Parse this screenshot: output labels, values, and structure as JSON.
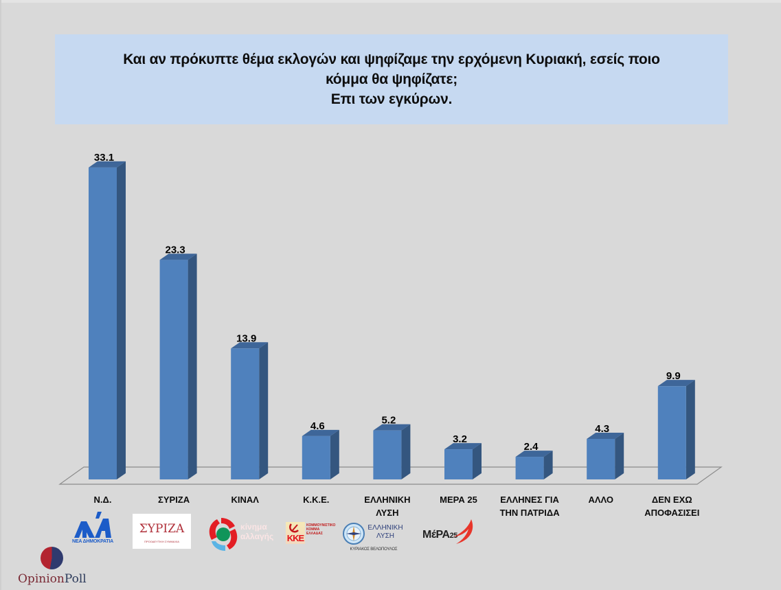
{
  "title": {
    "line1": "Και αν πρόκυπτε θέμα εκλογών και ψηφίζαμε την ερχόμενη Κυριακή, εσείς ποιο",
    "line2": "κόμμα θα ψηφίζατε;",
    "line3": "Επι των εγκύρων."
  },
  "colors": {
    "background": "#d9d9d9",
    "title_box": "#c6d9f1",
    "bar_front": "#4f81bd",
    "bar_side": "#34567f",
    "bar_top": "#3e6699",
    "floor_line": "#8c8c8c"
  },
  "chart_data": {
    "type": "bar",
    "title": "Και αν πρόκυπτε θέμα εκλογών και ψηφίζαμε την ερχόμενη Κυριακή, εσείς ποιο κόμμα θα ψηφίζατε; Επι των εγκύρων.",
    "categories": [
      "Ν.Δ.",
      "ΣΥΡΙΖΑ",
      "ΚΙΝΑΛ",
      "Κ.Κ.Ε.",
      "ΕΛΛΗΝΙΚΗ ΛΥΣΗ",
      "ΜΕΡΑ 25",
      "ΕΛΛΗΝΕΣ ΓΙΑ ΤΗΝ ΠΑΤΡΙΔΑ",
      "ΑΛΛΟ",
      "ΔΕΝ ΕΧΩ ΑΠΟΦΑΣΙΣΕΙ"
    ],
    "values": [
      33.1,
      23.3,
      13.9,
      4.6,
      5.2,
      3.2,
      2.4,
      4.3,
      9.9
    ],
    "value_labels": [
      "33.1",
      "23.3",
      "13.9",
      "4.6",
      "5.2",
      "3.2",
      "2.4",
      "4.3",
      "9.9"
    ],
    "xlabel": "",
    "ylabel": "",
    "ylim": [
      0,
      35
    ],
    "grid": false,
    "legend": "none",
    "style": "3d-column"
  },
  "categories": [
    {
      "line1": "Ν.Δ.",
      "line2": ""
    },
    {
      "line1": "ΣΥΡΙΖΑ",
      "line2": ""
    },
    {
      "line1": "ΚΙΝΑΛ",
      "line2": ""
    },
    {
      "line1": "Κ.Κ.Ε.",
      "line2": ""
    },
    {
      "line1": "ΕΛΛΗΝΙΚΗ",
      "line2": "ΛΥΣΗ"
    },
    {
      "line1": "ΜΕΡΑ 25",
      "line2": ""
    },
    {
      "line1": "ΕΛΛΗΝΕΣ ΓΙΑ",
      "line2": "ΤΗΝ ΠΑΤΡΙΔΑ"
    },
    {
      "line1": "ΑΛΛΟ",
      "line2": ""
    },
    {
      "line1": "ΔΕΝ ΕΧΩ",
      "line2": "ΑΠΟΦΑΣΙΣΕΙ"
    }
  ],
  "logos": {
    "nd": {
      "text": "ΝΕΑ ΔΗΜΟΚΡΑΤΙΑ"
    },
    "syriza": {
      "text": "ΣΥΡΙΖΑ",
      "sub": "ΠΡΟΟΔΕΥΤΙΚΗ ΣΥΜΜΑΧΙΑ"
    },
    "kinal": {
      "line1": "κίνημα",
      "line2": "αλλαγής"
    },
    "kke": {
      "text": "ΚΚΕ",
      "sub1": "ΚΟΜΜΟΥΝΙΣΤΙΚΟ",
      "sub2": "ΚΟΜΜΑ",
      "sub3": "ΕΛΛΑΔΑΣ"
    },
    "elliniki_lysi": {
      "line1": "ΕΛΛΗΝΙΚΗ",
      "line2": "ΛΥΣΗ",
      "sub": "ΚΥΡΙΑΚΟΣ ΒΕΛΟΠΟΥΛΟΣ"
    },
    "mera25": {
      "text": "ΜέΡΑ",
      "num": "25"
    }
  },
  "brand": {
    "part1": "Opinion",
    "part2": "Poll"
  }
}
